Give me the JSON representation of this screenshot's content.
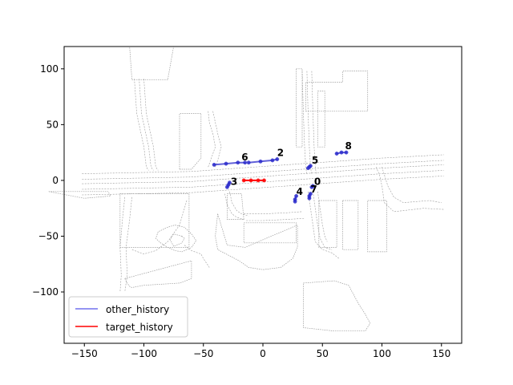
{
  "chart_data": {
    "type": "scatter",
    "title": "",
    "xlabel": "",
    "ylabel": "",
    "xlim": [
      -167,
      167
    ],
    "ylim": [
      -146,
      120
    ],
    "xticks": [
      -150,
      -100,
      -50,
      0,
      50,
      100,
      150
    ],
    "yticks": [
      -100,
      -50,
      0,
      50,
      100
    ],
    "xtick_labels": [
      "−150",
      "−100",
      "−50",
      "0",
      "50",
      "100",
      "150"
    ],
    "ytick_labels": [
      "−100",
      "−50",
      "0",
      "50",
      "100"
    ],
    "grid": false,
    "legend": {
      "placement": "lower-left",
      "entries": [
        {
          "label": "other_history",
          "color": "#7070ee"
        },
        {
          "label": "target_history",
          "color": "#ff0000"
        }
      ]
    },
    "colors": {
      "map_lane": "#9a9a9a",
      "other_history": "#2c2ccc",
      "target_history": "#ff0000"
    },
    "map_lanes": [
      {
        "x": [
          -152,
          -60,
          -20,
          20,
          60,
          100,
          152
        ],
        "y": [
          6,
          8,
          11,
          14,
          17,
          20,
          23
        ]
      },
      {
        "x": [
          -152,
          -60,
          -20,
          20,
          60,
          100,
          152
        ],
        "y": [
          1,
          3,
          6,
          9,
          12,
          15,
          18
        ]
      },
      {
        "x": [
          -152,
          -60,
          -20,
          20,
          60,
          100,
          152
        ],
        "y": [
          -3,
          -1,
          2,
          5,
          8,
          11,
          14
        ]
      },
      {
        "x": [
          -152,
          -60,
          -20,
          20,
          60,
          100,
          152
        ],
        "y": [
          -8,
          -6,
          -3,
          0,
          3,
          6,
          9
        ]
      },
      {
        "x": [
          -152,
          -60,
          -20,
          20,
          60,
          100,
          152
        ],
        "y": [
          -13,
          -11,
          -8,
          -5,
          -2,
          1,
          4
        ]
      },
      {
        "x": [
          -108,
          -106,
          -100,
          -98,
          -96
        ],
        "y": [
          91,
          60,
          30,
          12,
          9
        ]
      },
      {
        "x": [
          -104,
          -102,
          -96,
          -94,
          -92
        ],
        "y": [
          91,
          60,
          30,
          12,
          9
        ]
      },
      {
        "x": [
          -100,
          -98,
          -92,
          -90,
          -88
        ],
        "y": [
          91,
          60,
          30,
          12,
          9
        ]
      },
      {
        "x": [
          -46,
          -45,
          -42,
          -40,
          -44,
          -46
        ],
        "y": [
          62,
          52,
          42,
          30,
          18,
          12
        ]
      },
      {
        "x": [
          -42,
          -40,
          -38,
          -35,
          -38,
          -40
        ],
        "y": [
          62,
          52,
          42,
          30,
          18,
          12
        ]
      },
      {
        "x": [
          -32,
          -30,
          -26,
          -22,
          -16
        ],
        "y": [
          -12,
          -22,
          -30,
          -33,
          -35
        ]
      },
      {
        "x": [
          -28,
          -26,
          -22,
          -18,
          -12
        ],
        "y": [
          -10,
          -20,
          -27,
          -30,
          -32
        ]
      },
      {
        "x": [
          -16,
          0,
          20,
          33
        ],
        "y": [
          -30,
          -30,
          -29,
          -28
        ]
      },
      {
        "x": [
          -14,
          0,
          20,
          35
        ],
        "y": [
          -36,
          -36,
          -35,
          -34
        ]
      },
      {
        "x": [
          33,
          34,
          35,
          36,
          37
        ],
        "y": [
          98,
          60,
          30,
          12,
          5
        ]
      },
      {
        "x": [
          37,
          38,
          39,
          40,
          41
        ],
        "y": [
          98,
          60,
          30,
          12,
          5
        ]
      },
      {
        "x": [
          41,
          42,
          43,
          44,
          45
        ],
        "y": [
          98,
          60,
          30,
          12,
          5
        ]
      },
      {
        "x": [
          38,
          40,
          42,
          44,
          50,
          58,
          64
        ],
        "y": [
          -10,
          -25,
          -40,
          -55,
          -62,
          -65,
          -70
        ]
      },
      {
        "x": [
          42,
          44,
          46,
          48,
          52,
          58
        ],
        "y": [
          -10,
          -25,
          -40,
          -52,
          -60,
          -62
        ]
      },
      {
        "x": [
          46,
          48,
          50,
          52,
          54
        ],
        "y": [
          -10,
          -25,
          -40,
          -50,
          -55
        ]
      },
      {
        "x": [
          -116,
          -118,
          -120,
          -119,
          -120
        ],
        "y": [
          -15,
          -35,
          -60,
          -85,
          -100
        ]
      },
      {
        "x": [
          -110,
          -112,
          -115,
          -114,
          -116
        ],
        "y": [
          -15,
          -35,
          -60,
          -85,
          -100
        ]
      },
      {
        "x": [
          95,
          98,
          100,
          102,
          110,
          135,
          152
        ],
        "y": [
          12,
          5,
          -5,
          -20,
          -28,
          -25,
          -26
        ]
      },
      {
        "x": [
          100,
          102,
          105,
          110,
          118,
          140,
          150
        ],
        "y": [
          12,
          5,
          -5,
          -15,
          -20,
          -18,
          -20
        ]
      },
      {
        "x": [
          -64,
          -70,
          -80,
          -90,
          -100,
          -110
        ],
        "y": [
          -18,
          -40,
          -55,
          -63,
          -66,
          -62
        ]
      },
      {
        "x": [
          -66,
          -60,
          -52,
          -50,
          -45
        ],
        "y": [
          -58,
          -63,
          -66,
          -70,
          -78
        ]
      }
    ],
    "map_polygons": [
      {
        "x": [
          -30,
          -18,
          -16,
          -30,
          -30
        ],
        "y": [
          -12,
          -12,
          -35,
          -35,
          -12
        ]
      },
      {
        "x": [
          -16,
          28,
          28,
          -16,
          -16
        ],
        "y": [
          -38,
          -38,
          -56,
          -56,
          -38
        ]
      },
      {
        "x": [
          -38,
          -40,
          -38,
          -20,
          -12,
          0,
          15,
          25,
          29,
          29,
          -15,
          -30,
          -38
        ],
        "y": [
          -30,
          -50,
          -62,
          -72,
          -78,
          -80,
          -78,
          -70,
          -60,
          -40,
          -60,
          -58,
          -30
        ]
      },
      {
        "x": [
          36,
          88,
          88,
          67,
          67,
          36,
          36
        ],
        "y": [
          62,
          62,
          98,
          98,
          88,
          88,
          62
        ]
      },
      {
        "x": [
          28,
          33,
          33,
          28,
          28
        ],
        "y": [
          100,
          100,
          30,
          30,
          100
        ]
      },
      {
        "x": [
          46,
          52,
          52,
          46,
          46
        ],
        "y": [
          80,
          80,
          30,
          30,
          80
        ]
      },
      {
        "x": [
          47,
          62,
          62,
          47,
          47
        ],
        "y": [
          -18,
          -18,
          -60,
          -60,
          -18
        ]
      },
      {
        "x": [
          67,
          80,
          80,
          67,
          67
        ],
        "y": [
          -18,
          -18,
          -62,
          -62,
          -18
        ]
      },
      {
        "x": [
          88,
          104,
          104,
          88,
          88
        ],
        "y": [
          -18,
          -18,
          -64,
          -64,
          -18
        ]
      },
      {
        "x": [
          34,
          60,
          72,
          80,
          86,
          90,
          86,
          60,
          34,
          34
        ],
        "y": [
          -92,
          -90,
          -94,
          -110,
          -120,
          -128,
          -135,
          -135,
          -132,
          -92
        ]
      },
      {
        "x": [
          -160,
          -152,
          -152,
          -160
        ],
        "y": [
          120,
          120,
          120,
          120
        ]
      },
      {
        "x": [
          -68,
          -66,
          -68,
          -75,
          -78,
          -75,
          -68
        ],
        "y": [
          -50,
          -52,
          -56,
          -59,
          -53,
          -48,
          -50
        ]
      },
      {
        "x": [
          -60,
          -56,
          -60,
          -68,
          -74,
          -80,
          -86,
          -90,
          -88,
          -80,
          -74,
          -66,
          -60
        ],
        "y": [
          -48,
          -54,
          -60,
          -64,
          -63,
          -60,
          -56,
          -52,
          -46,
          -42,
          -40,
          -42,
          -48
        ]
      },
      {
        "x": [
          -116,
          -114,
          -112,
          -110,
          -100,
          -70,
          -60,
          -60,
          -116
        ],
        "y": [
          -88,
          -92,
          -95,
          -96,
          -94,
          -92,
          -88,
          -72,
          -88
        ]
      },
      {
        "x": [
          -120,
          -62,
          -62,
          -120,
          -120
        ],
        "y": [
          -12,
          -12,
          -60,
          -60,
          -12
        ]
      },
      {
        "x": [
          -70,
          -60,
          -52,
          -52,
          -70,
          -70
        ],
        "y": [
          10,
          10,
          20,
          60,
          60,
          10
        ]
      },
      {
        "x": [
          -110,
          -80,
          -75,
          -112,
          -110
        ],
        "y": [
          90,
          90,
          120,
          120,
          90
        ]
      },
      {
        "x": [
          -180,
          -130,
          -128,
          -150,
          -180
        ],
        "y": [
          -10,
          -10,
          -14,
          -16,
          -10
        ]
      }
    ],
    "series": [
      {
        "name": "other_history",
        "id": "0",
        "x": [
          41,
          42
        ],
        "y": [
          -6,
          -5
        ]
      },
      {
        "name": "other_history",
        "id": "2",
        "x": [
          -12,
          -2,
          8,
          12
        ],
        "y": [
          16,
          17,
          18,
          19
        ]
      },
      {
        "name": "other_history",
        "id": "3",
        "x": [
          -30,
          -29,
          -28
        ],
        "y": [
          -6,
          -4,
          -2
        ]
      },
      {
        "name": "other_history",
        "id": "4",
        "x": [
          27,
          27,
          28
        ],
        "y": [
          -19,
          -17,
          -14
        ]
      },
      {
        "name": "other_history",
        "id": "5",
        "x": [
          38,
          39,
          40
        ],
        "y": [
          11,
          12,
          13
        ]
      },
      {
        "name": "other_history",
        "id": "6",
        "x": [
          -41,
          -31,
          -21,
          -15
        ],
        "y": [
          14,
          15,
          16,
          16
        ]
      },
      {
        "name": "other_history",
        "id": "7",
        "x": [
          39,
          39,
          40
        ],
        "y": [
          -16,
          -14,
          -12
        ]
      },
      {
        "name": "other_history",
        "id": "8",
        "x": [
          62,
          66,
          70
        ],
        "y": [
          24,
          25,
          25
        ]
      },
      {
        "name": "target_history",
        "x": [
          -16,
          -10,
          -4,
          1
        ],
        "y": [
          0,
          0,
          0,
          0
        ]
      }
    ],
    "annotations": [
      {
        "text": "0",
        "x": 43,
        "y": -4
      },
      {
        "text": "2",
        "x": 12,
        "y": 22
      },
      {
        "text": "3",
        "x": -27,
        "y": -4
      },
      {
        "text": "4",
        "x": 28,
        "y": -13
      },
      {
        "text": "5",
        "x": 41,
        "y": 15
      },
      {
        "text": "6",
        "x": -18,
        "y": 18
      },
      {
        "text": "7",
        "x": 40,
        "y": -11
      },
      {
        "text": "8",
        "x": 69,
        "y": 28
      }
    ]
  }
}
